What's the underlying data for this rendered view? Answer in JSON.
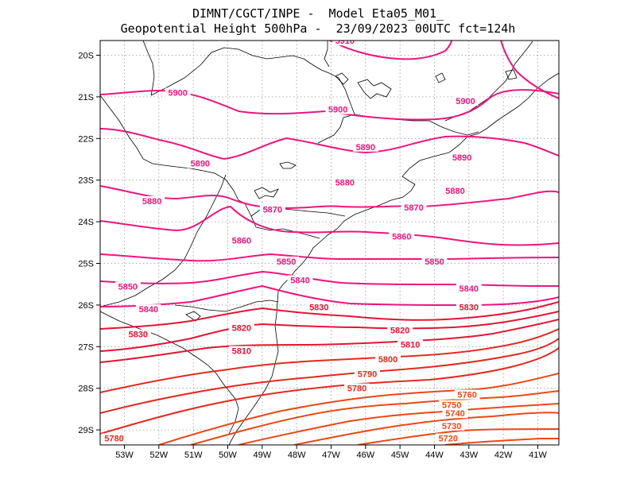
{
  "header": {
    "line1": "DIMNT/CGCT/INPE -  Model Eta05_M01_",
    "line2": "Geopotential Height 500hPa -  23/09/2023 00UTC fct=124h"
  },
  "axes": {
    "lat_labels": [
      "20S",
      "21S",
      "22S",
      "23S",
      "24S",
      "25S",
      "26S",
      "27S",
      "28S",
      "29S"
    ],
    "lon_labels": [
      "53W",
      "52W",
      "51W",
      "50W",
      "49W",
      "48W",
      "47W",
      "46W",
      "45W",
      "44W",
      "43W",
      "42W",
      "41W"
    ]
  },
  "colors": {
    "magenta": "#f0147d",
    "crimson": "#e61432",
    "red": "#e6281e",
    "orange": "#f04614",
    "border": "#000000",
    "grid": "#9a9a9a"
  },
  "contour_labels": [
    {
      "text": "5910",
      "lon": -46.6,
      "lat": -19.65,
      "color": "magenta"
    },
    {
      "text": "5900",
      "lon": -51.45,
      "lat": -20.9,
      "color": "magenta"
    },
    {
      "text": "5900",
      "lon": -46.8,
      "lat": -21.3,
      "color": "magenta"
    },
    {
      "text": "5900",
      "lon": -43.1,
      "lat": -21.1,
      "color": "magenta"
    },
    {
      "text": "5890",
      "lon": -50.8,
      "lat": -22.6,
      "color": "magenta"
    },
    {
      "text": "5890",
      "lon": -46.0,
      "lat": -22.2,
      "color": "magenta"
    },
    {
      "text": "5890",
      "lon": -43.2,
      "lat": -22.45,
      "color": "magenta"
    },
    {
      "text": "5880",
      "lon": -52.2,
      "lat": -23.5,
      "color": "magenta"
    },
    {
      "text": "5880",
      "lon": -46.6,
      "lat": -23.05,
      "color": "magenta"
    },
    {
      "text": "5880",
      "lon": -43.4,
      "lat": -23.25,
      "color": "magenta"
    },
    {
      "text": "5870",
      "lon": -48.7,
      "lat": -23.7,
      "color": "magenta"
    },
    {
      "text": "5870",
      "lon": -44.6,
      "lat": -23.65,
      "color": "magenta"
    },
    {
      "text": "5860",
      "lon": -49.6,
      "lat": -24.45,
      "color": "magenta"
    },
    {
      "text": "5860",
      "lon": -44.95,
      "lat": -24.35,
      "color": "magenta"
    },
    {
      "text": "5850",
      "lon": -48.3,
      "lat": -24.95,
      "color": "magenta"
    },
    {
      "text": "5850",
      "lon": -44.0,
      "lat": -24.95,
      "color": "magenta"
    },
    {
      "text": "5850",
      "lon": -52.9,
      "lat": -25.55,
      "color": "magenta"
    },
    {
      "text": "5840",
      "lon": -47.9,
      "lat": -25.4,
      "color": "magenta"
    },
    {
      "text": "5840",
      "lon": -43.0,
      "lat": -25.6,
      "color": "magenta"
    },
    {
      "text": "5840",
      "lon": -52.3,
      "lat": -26.1,
      "color": "magenta"
    },
    {
      "text": "5830",
      "lon": -47.35,
      "lat": -26.05,
      "color": "crimson"
    },
    {
      "text": "5830",
      "lon": -43.0,
      "lat": -26.05,
      "color": "crimson"
    },
    {
      "text": "5830",
      "lon": -52.6,
      "lat": -26.7,
      "color": "crimson"
    },
    {
      "text": "5820",
      "lon": -49.6,
      "lat": -26.55,
      "color": "crimson"
    },
    {
      "text": "5820",
      "lon": -45.0,
      "lat": -26.6,
      "color": "crimson"
    },
    {
      "text": "5810",
      "lon": -49.6,
      "lat": -27.1,
      "color": "crimson"
    },
    {
      "text": "5810",
      "lon": -44.7,
      "lat": -26.95,
      "color": "crimson"
    },
    {
      "text": "5800",
      "lon": -45.35,
      "lat": -27.3,
      "color": "red"
    },
    {
      "text": "5790",
      "lon": -45.95,
      "lat": -27.65,
      "color": "red"
    },
    {
      "text": "5780",
      "lon": -46.25,
      "lat": -28.0,
      "color": "red"
    },
    {
      "text": "5780",
      "lon": -53.3,
      "lat": -29.2,
      "color": "red"
    },
    {
      "text": "5760",
      "lon": -43.05,
      "lat": -28.15,
      "color": "orange"
    },
    {
      "text": "5750",
      "lon": -43.5,
      "lat": -28.4,
      "color": "orange"
    },
    {
      "text": "5740",
      "lon": -43.4,
      "lat": -28.6,
      "color": "orange"
    },
    {
      "text": "5730",
      "lon": -43.5,
      "lat": -28.9,
      "color": "orange"
    },
    {
      "text": "5720",
      "lon": -43.6,
      "lat": -29.2,
      "color": "orange"
    }
  ]
}
